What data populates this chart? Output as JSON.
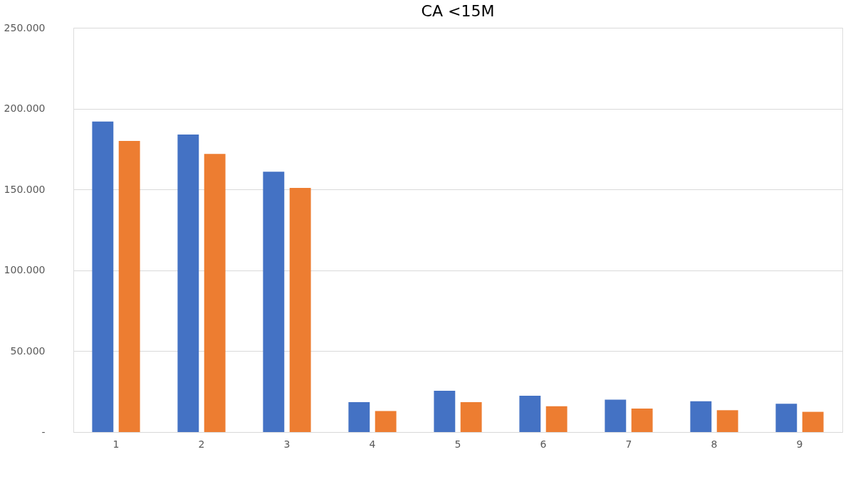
{
  "chart_data": {
    "type": "bar",
    "title": "CA <15M",
    "categories": [
      "1",
      "2",
      "3",
      "4",
      "5",
      "6",
      "7",
      "8",
      "9"
    ],
    "series": [
      {
        "color": "#4472c4",
        "values": [
          192000,
          184000,
          161000,
          18500,
          25500,
          22500,
          20000,
          19000,
          17500
        ]
      },
      {
        "color": "#ed7d31",
        "values": [
          180000,
          172000,
          151000,
          13000,
          18500,
          16000,
          14500,
          13500,
          12500
        ]
      }
    ],
    "ylim": [
      0,
      250000
    ],
    "yticks": [
      {
        "value": 0,
        "label": "-"
      },
      {
        "value": 50000,
        "label": "50.000"
      },
      {
        "value": 100000,
        "label": "100.000"
      },
      {
        "value": 150000,
        "label": "150.000"
      },
      {
        "value": 200000,
        "label": "200.000"
      },
      {
        "value": 250000,
        "label": "250.000"
      }
    ],
    "grid": "y",
    "legend": false
  }
}
